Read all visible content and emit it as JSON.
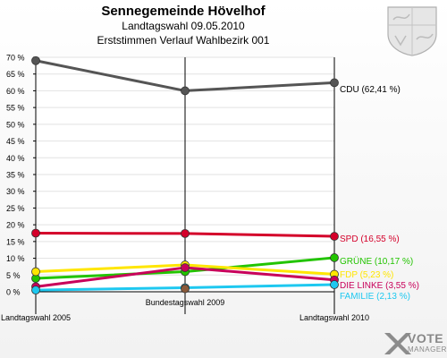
{
  "header": {
    "title": "Sennegemeinde Hövelhof",
    "subtitle": "Landtagswahl 09.05.2010",
    "subtitle2": "Erststimmen Verlauf Wahlbezirk 001"
  },
  "logo": {
    "text1": "VOTE",
    "text2": "MANAGER"
  },
  "chart_data": {
    "type": "line",
    "categories": [
      "Landtagswahl 2005",
      "Bundestagswahl 2009",
      "Landtagswahl 2010"
    ],
    "yticks": [
      "0 %",
      "5 %",
      "10 %",
      "15 %",
      "20 %",
      "25 %",
      "30 %",
      "35 %",
      "40 %",
      "45 %",
      "50 %",
      "55 %",
      "60 %",
      "65 %",
      "70 %"
    ],
    "ylim": [
      0,
      70
    ],
    "series": [
      {
        "name": "CDU",
        "label": "CDU (62,41 %)",
        "color": "#555555",
        "values": [
          69.0,
          60.0,
          62.41
        ]
      },
      {
        "name": "SPD",
        "label": "SPD (16,55 %)",
        "color": "#d4002a",
        "values": [
          17.5,
          17.4,
          16.55
        ]
      },
      {
        "name": "GRÜNE",
        "label": "GRÜNE (10,17 %)",
        "color": "#22c400",
        "values": [
          4.0,
          6.0,
          10.17
        ]
      },
      {
        "name": "FDP",
        "label": "FDP (5,23 %)",
        "color": "#ffe600",
        "values": [
          6.0,
          8.0,
          5.23
        ]
      },
      {
        "name": "DIE LINKE",
        "label": "DIE LINKE (3,55 %)",
        "color": "#c8005a",
        "values": [
          1.5,
          7.2,
          3.55
        ]
      },
      {
        "name": "FAMILIE",
        "label": "FAMILIE (2,13 %)",
        "color": "#1ec8f0",
        "values": [
          0.5,
          1.2,
          2.13
        ]
      },
      {
        "name": "",
        "label": "",
        "color": "#8a5a3a",
        "values": [
          null,
          0.9,
          null
        ]
      }
    ]
  }
}
